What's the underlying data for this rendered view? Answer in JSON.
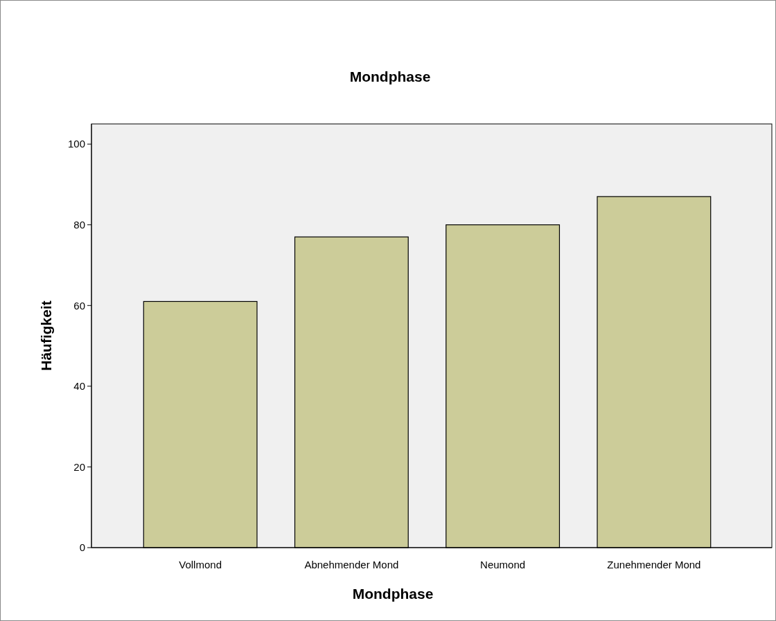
{
  "chart_data": {
    "type": "bar",
    "title": "Mondphase",
    "xlabel": "Mondphase",
    "ylabel": "Häufigkeit",
    "categories": [
      "Vollmond",
      "Abnehmender Mond",
      "Neumond",
      "Zunehmender Mond"
    ],
    "values": [
      61,
      77,
      80,
      87
    ],
    "color": "#cccc99",
    "ylim": [
      0,
      105
    ],
    "yticks": [
      0,
      20,
      40,
      60,
      80,
      100
    ],
    "grid": false
  }
}
